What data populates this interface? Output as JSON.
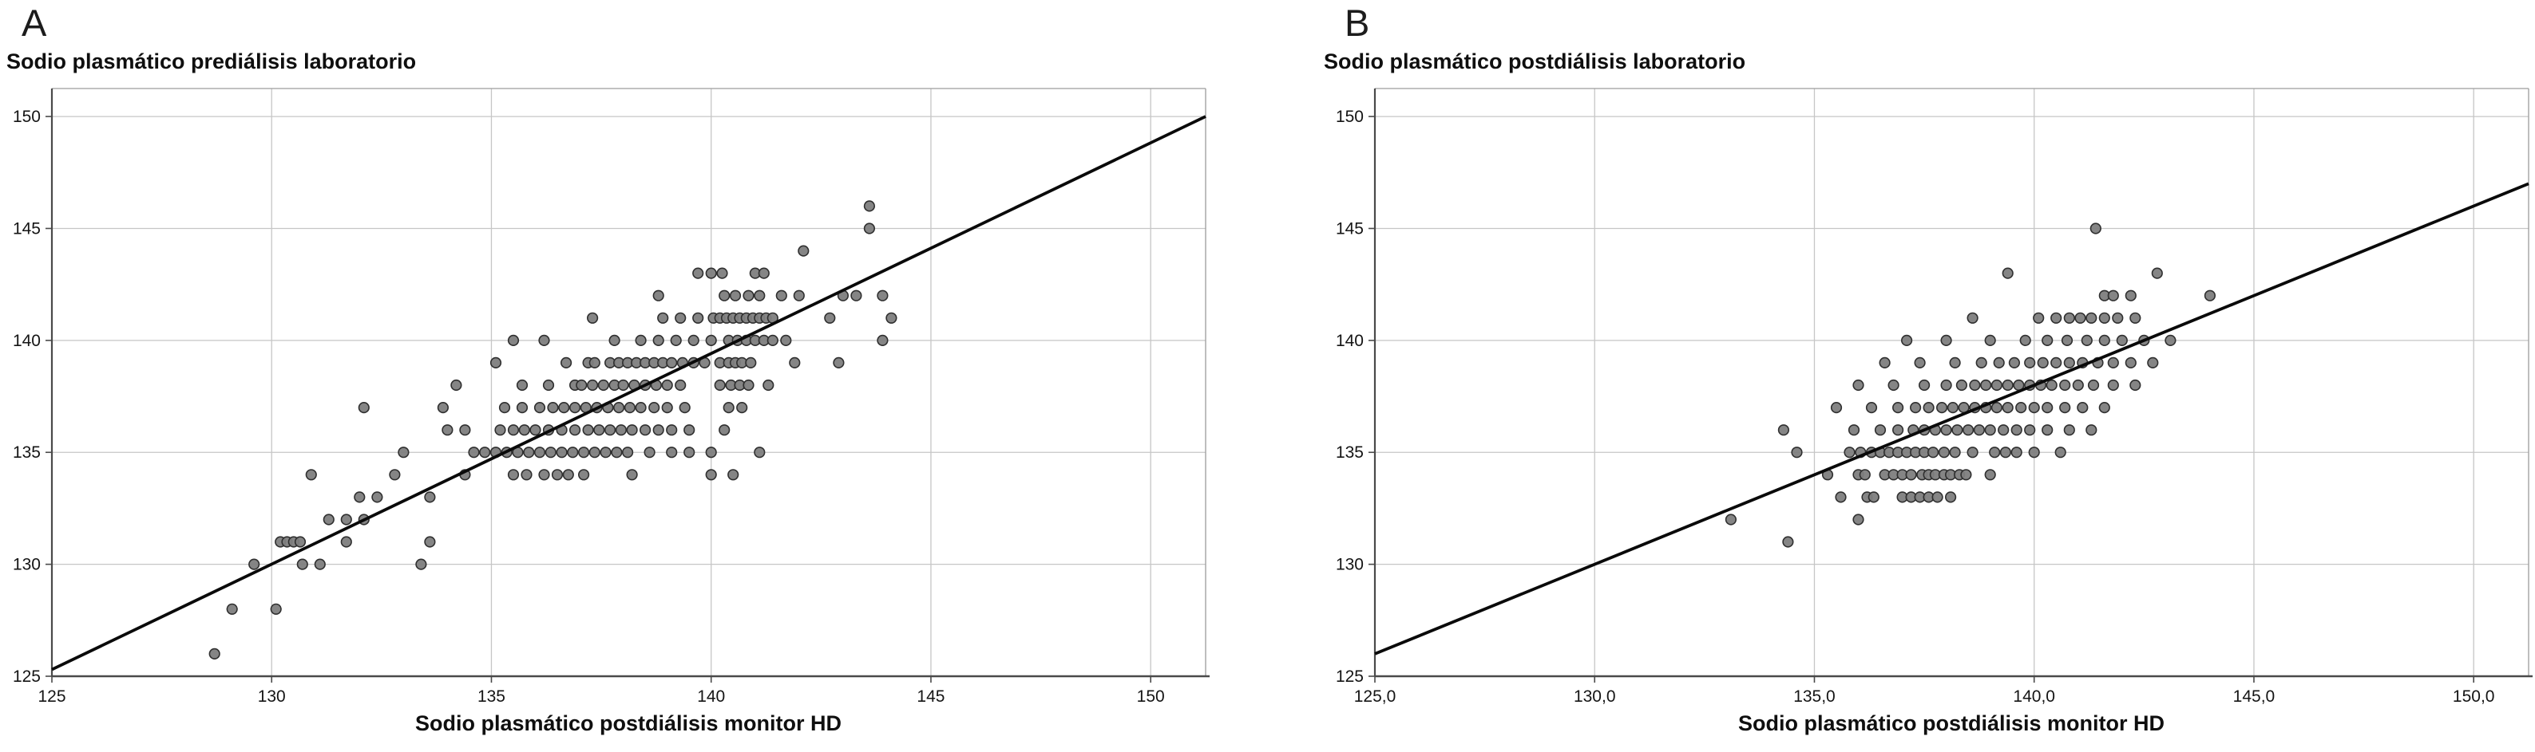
{
  "figure": {
    "panels": [
      {
        "letter": "A"
      },
      {
        "letter": "B"
      }
    ]
  },
  "colors": {
    "marker_fill": "#7e7e7e",
    "marker_stroke": "#2f2f2f",
    "grid": "#c6c6c6",
    "axis": "#4a4a4a",
    "frame_light": "#9c9c9c",
    "fit_line": "#0a0a0a",
    "background": "#ffffff"
  },
  "chart_data": [
    {
      "type": "scatter",
      "panel": "A",
      "title": "Sodio plasmático prediálisis laboratorio",
      "ylabel": "Sodio plasmático prediálisis laboratorio",
      "xlabel": "Sodio plasmático postdiálisis monitor HD",
      "x_range": [
        125,
        151.25
      ],
      "y_range": [
        125,
        151.25
      ],
      "x_tick_values": [
        125,
        130,
        135,
        140,
        145,
        150
      ],
      "y_tick_values": [
        125,
        130,
        135,
        140,
        145,
        150
      ],
      "x_tick_labels": [
        "125",
        "130",
        "135",
        "140",
        "145",
        "150"
      ],
      "y_tick_labels": [
        "125",
        "130",
        "135",
        "140",
        "145",
        "150"
      ],
      "grid": true,
      "legend": "none",
      "reference_line": {
        "x1": 125,
        "y1": 125.3,
        "x2": 151.25,
        "y2": 150.0
      },
      "points_rows": [
        {
          "y": 126,
          "x": [
            128.7
          ]
        },
        {
          "y": 128,
          "x": [
            129.1,
            130.1
          ]
        },
        {
          "y": 130,
          "x": [
            129.6,
            130.7,
            131.1,
            133.4
          ]
        },
        {
          "y": 131,
          "x": [
            130.2,
            130.35,
            130.5,
            130.65,
            131.7,
            133.6
          ]
        },
        {
          "y": 132,
          "x": [
            131.3,
            131.7,
            132.1
          ]
        },
        {
          "y": 133,
          "x": [
            132.0,
            132.4,
            133.6
          ]
        },
        {
          "y": 134,
          "x": [
            130.9,
            132.8,
            134.4,
            135.5,
            135.8,
            136.2,
            136.5,
            136.75,
            137.1,
            138.2,
            140.0,
            140.5
          ]
        },
        {
          "y": 135,
          "x": [
            133.0,
            134.6,
            134.85,
            135.1,
            135.35,
            135.6,
            135.85,
            136.1,
            136.35,
            136.6,
            136.85,
            137.1,
            137.35,
            137.6,
            137.85,
            138.1,
            138.6,
            139.1,
            139.5,
            140.0,
            141.1
          ]
        },
        {
          "y": 136,
          "x": [
            134.0,
            134.4,
            135.2,
            135.5,
            135.75,
            136.0,
            136.3,
            136.6,
            136.9,
            137.2,
            137.45,
            137.7,
            137.95,
            138.2,
            138.5,
            138.8,
            139.1,
            139.5,
            140.3
          ]
        },
        {
          "y": 137,
          "x": [
            132.1,
            133.9,
            135.3,
            135.7,
            136.1,
            136.4,
            136.65,
            136.9,
            137.15,
            137.4,
            137.65,
            137.9,
            138.15,
            138.4,
            138.7,
            139.0,
            139.4,
            140.4,
            140.7
          ]
        },
        {
          "y": 138,
          "x": [
            134.2,
            135.7,
            136.3,
            136.9,
            137.05,
            137.3,
            137.55,
            137.8,
            138.0,
            138.25,
            138.5,
            138.75,
            139.0,
            139.3,
            140.2,
            140.45,
            140.65,
            140.85,
            141.3
          ]
        },
        {
          "y": 139,
          "x": [
            135.1,
            136.7,
            137.2,
            137.35,
            137.7,
            137.9,
            138.1,
            138.3,
            138.5,
            138.7,
            138.9,
            139.1,
            139.35,
            139.6,
            139.85,
            140.2,
            140.4,
            140.55,
            140.7,
            140.9,
            141.9,
            142.9
          ]
        },
        {
          "y": 140,
          "x": [
            135.5,
            136.2,
            137.8,
            138.4,
            138.8,
            139.2,
            139.6,
            140.0,
            140.4,
            140.6,
            140.8,
            141.0,
            141.2,
            141.4,
            141.7,
            143.9
          ]
        },
        {
          "y": 141,
          "x": [
            137.3,
            138.9,
            139.3,
            139.7,
            140.05,
            140.2,
            140.35,
            140.5,
            140.65,
            140.8,
            140.95,
            141.1,
            141.25,
            141.4,
            142.7,
            144.1
          ]
        },
        {
          "y": 142,
          "x": [
            138.8,
            140.3,
            140.55,
            140.85,
            141.1,
            141.6,
            142.0,
            143.0,
            143.3,
            143.9
          ]
        },
        {
          "y": 143,
          "x": [
            139.7,
            140.0,
            140.25,
            141.0,
            141.2
          ]
        },
        {
          "y": 144,
          "x": [
            142.1
          ]
        },
        {
          "y": 145,
          "x": [
            143.6
          ]
        },
        {
          "y": 146,
          "x": [
            143.6
          ]
        }
      ]
    },
    {
      "type": "scatter",
      "panel": "B",
      "title": "Sodio plasmático postdiálisis laboratorio",
      "ylabel": "Sodio plasmático postdiálisis laboratorio",
      "xlabel": "Sodio plasmático postdiálisis monitor HD",
      "x_range": [
        125,
        151.25
      ],
      "y_range": [
        125,
        151.25
      ],
      "x_tick_values": [
        125,
        130,
        135,
        140,
        145,
        150
      ],
      "y_tick_values": [
        125,
        130,
        135,
        140,
        145,
        150
      ],
      "x_tick_labels": [
        "125,0",
        "130,0",
        "135,0",
        "140,0",
        "145,0",
        "150,0"
      ],
      "y_tick_labels": [
        "125",
        "130",
        "135",
        "140",
        "145",
        "150"
      ],
      "grid": true,
      "legend": "none",
      "reference_line": {
        "x1": 125,
        "y1": 126.0,
        "x2": 151.25,
        "y2": 147.0
      },
      "points_rows": [
        {
          "y": 131,
          "x": [
            134.4
          ]
        },
        {
          "y": 132,
          "x": [
            133.1,
            136.0
          ]
        },
        {
          "y": 133,
          "x": [
            135.6,
            136.2,
            136.35,
            137.0,
            137.2,
            137.4,
            137.6,
            137.8,
            138.1
          ]
        },
        {
          "y": 134,
          "x": [
            135.3,
            136.0,
            136.15,
            136.6,
            136.8,
            137.0,
            137.2,
            137.45,
            137.6,
            137.75,
            137.95,
            138.1,
            138.3,
            138.45,
            139.0
          ]
        },
        {
          "y": 135,
          "x": [
            134.6,
            135.8,
            136.05,
            136.3,
            136.5,
            136.7,
            136.9,
            137.1,
            137.3,
            137.5,
            137.7,
            137.95,
            138.2,
            138.6,
            139.1,
            139.35,
            139.6,
            140.0,
            140.6
          ]
        },
        {
          "y": 136,
          "x": [
            134.3,
            135.9,
            136.5,
            136.9,
            137.25,
            137.5,
            137.75,
            138.0,
            138.25,
            138.5,
            138.75,
            139.0,
            139.3,
            139.6,
            139.9,
            140.3,
            140.8,
            141.3
          ]
        },
        {
          "y": 137,
          "x": [
            135.5,
            136.3,
            136.9,
            137.3,
            137.6,
            137.9,
            138.15,
            138.4,
            138.65,
            138.9,
            139.15,
            139.4,
            139.7,
            140.0,
            140.3,
            140.7,
            141.1,
            141.6
          ]
        },
        {
          "y": 138,
          "x": [
            136.0,
            136.8,
            137.5,
            138.0,
            138.35,
            138.65,
            138.9,
            139.15,
            139.4,
            139.65,
            139.9,
            140.15,
            140.4,
            140.7,
            141.0,
            141.35,
            141.8,
            142.3
          ]
        },
        {
          "y": 139,
          "x": [
            136.6,
            137.4,
            138.2,
            138.8,
            139.2,
            139.55,
            139.9,
            140.2,
            140.5,
            140.8,
            141.1,
            141.45,
            141.8,
            142.2,
            142.7
          ]
        },
        {
          "y": 140,
          "x": [
            137.1,
            138.0,
            139.0,
            139.8,
            140.3,
            140.75,
            141.2,
            141.6,
            142.0,
            142.5,
            143.1
          ]
        },
        {
          "y": 141,
          "x": [
            138.6,
            140.1,
            140.5,
            140.8,
            141.05,
            141.3,
            141.6,
            141.9,
            142.3
          ]
        },
        {
          "y": 142,
          "x": [
            141.6,
            141.8,
            142.2,
            144.0
          ]
        },
        {
          "y": 143,
          "x": [
            139.4,
            142.8
          ]
        },
        {
          "y": 145,
          "x": [
            141.4
          ]
        }
      ]
    }
  ]
}
